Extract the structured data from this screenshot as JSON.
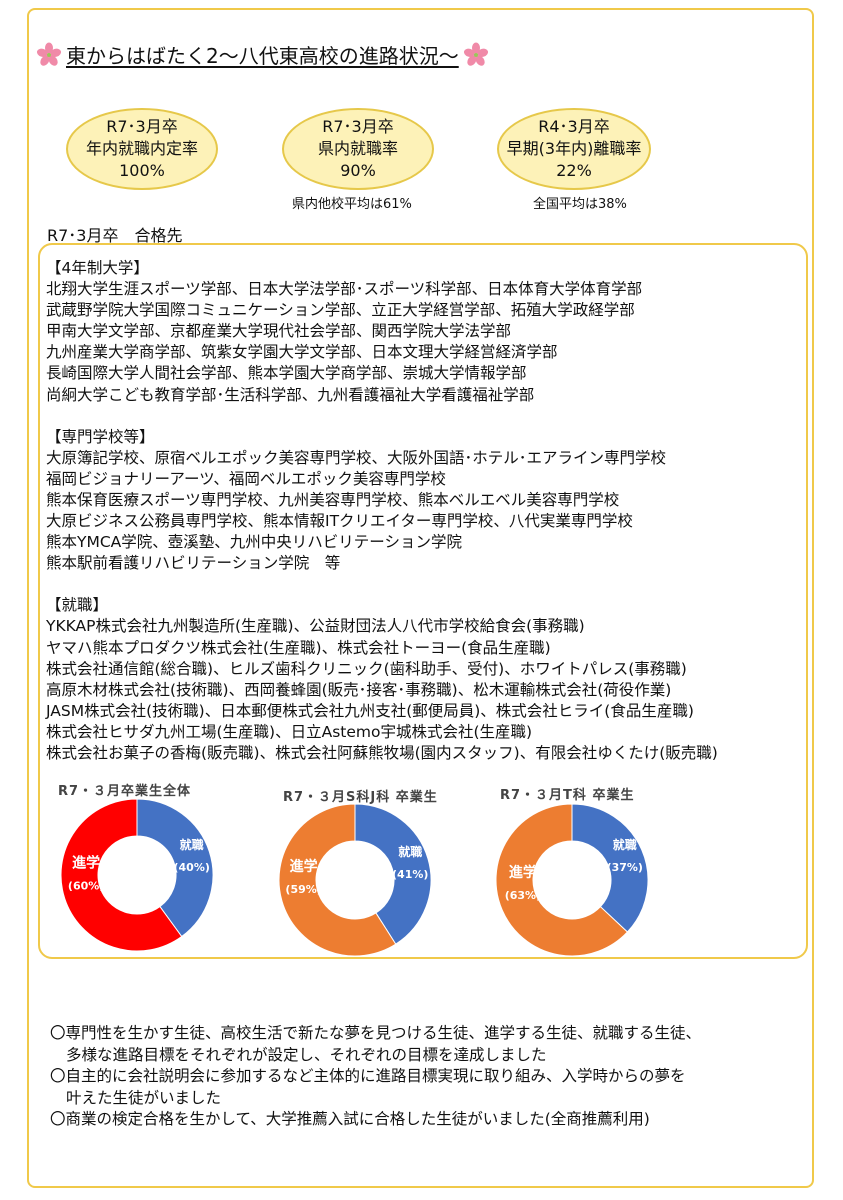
{
  "title": "東からはばたく2～八代東高校の進路状況～",
  "stats": [
    {
      "line1": "R7･3月卒",
      "line2": "年内就職内定率",
      "line3": "100%",
      "note": ""
    },
    {
      "line1": "R7･3月卒",
      "line2": "県内就職率",
      "line3": "90%",
      "note": "県内他校平均は61%"
    },
    {
      "line1": "R4･3月卒",
      "line2": "早期(3年内)離職率",
      "line3": "22%",
      "note": "全国平均は38%"
    }
  ],
  "section_label": "R7･3月卒　合格先",
  "universities": {
    "heading": "【4年制大学】",
    "lines": [
      "北翔大学生涯スポーツ学部、日本大学法学部･スポーツ科学部、日本体育大学体育学部",
      "武蔵野学院大学国際コミュニケーション学部、立正大学経営学部、拓殖大学政経学部",
      "甲南大学文学部、京都産業大学現代社会学部、関西学院大学法学部",
      "九州産業大学商学部、筑紫女学園大学文学部、日本文理大学経営経済学部",
      "長崎国際大学人間社会学部、熊本学園大学商学部、崇城大学情報学部",
      "尚絅大学こども教育学部･生活科学部、九州看護福祉大学看護福祉学部"
    ]
  },
  "vocational": {
    "heading": "【専門学校等】",
    "lines": [
      "大原簿記学校、原宿ベルエポック美容専門学校、大阪外国語･ホテル･エアライン専門学校",
      "福岡ビジョナリーアーツ、福岡ベルエポック美容専門学校",
      "熊本保育医療スポーツ専門学校、九州美容専門学校、熊本ベルエベル美容専門学校",
      "大原ビジネス公務員専門学校、熊本情報ITクリエイター専門学校、八代実業専門学校",
      "熊本YMCA学院、壺溪塾、九州中央リハビリテーション学院",
      "熊本駅前看護リハビリテーション学院　等"
    ]
  },
  "employment": {
    "heading": "【就職】",
    "lines": [
      "YKKAP株式会社九州製造所(生産職)、公益財団法人八代市学校給食会(事務職)",
      "ヤマハ熊本プロダクツ株式会社(生産職)、株式会社トーヨー(食品生産職)",
      "株式会社通信館(総合職)、ヒルズ歯科クリニック(歯科助手、受付)、ホワイトパレス(事務職)",
      "高原木材株式会社(技術職)、西岡養蜂園(販売･接客･事務職)、松木運輸株式会社(荷役作業)",
      "JASM株式会社(技術職)、日本郵便株式会社九州支社(郵便局員)、株式会社ヒライ(食品生産職)",
      "株式会社ヒサダ九州工場(生産職)、日立Astemo宇城株式会社(生産職)",
      "株式会社お菓子の香梅(販売職)、株式会社阿蘇熊牧場(園内スタッフ)、有限会社ゆくたけ(販売職)"
    ]
  },
  "chart_data": [
    {
      "type": "pie",
      "title": "R7・３月卒業生全体",
      "categories": [
        "就職",
        "進学"
      ],
      "values": [
        40,
        60
      ],
      "labels": [
        "(40%)",
        "(60%)"
      ],
      "colors": [
        "#4472c4",
        "#ff0000"
      ]
    },
    {
      "type": "pie",
      "title": "R7・３月S科J科 卒業生",
      "categories": [
        "就職",
        "進学"
      ],
      "values": [
        41,
        59
      ],
      "labels": [
        "(41%)",
        "(59%)"
      ],
      "colors": [
        "#4472c4",
        "#ed7d31"
      ]
    },
    {
      "type": "pie",
      "title": "R7・３月T科 卒業生",
      "categories": [
        "就職",
        "進学"
      ],
      "values": [
        37,
        63
      ],
      "labels": [
        "(37%)",
        "(63%)"
      ],
      "colors": [
        "#4472c4",
        "#ed7d31"
      ]
    }
  ],
  "summary": [
    "〇専門性を生かす生徒、高校生活で新たな夢を見つける生徒、進学する生徒、就職する生徒、",
    "多様な進路目標をそれぞれが設定し、それぞれの目標を達成しました",
    "〇自主的に会社説明会に参加するなど主体的に進路目標実現に取り組み、入学時からの夢を",
    "叶えた生徒がいました",
    "〇商業の検定合格を生かして、大学推薦入試に合格した生徒がいました(全商推薦利用)"
  ],
  "colors": {
    "frame": "#f0c94a",
    "oval_fill": "#fdf2b8",
    "sakura": "#f08aa8"
  }
}
